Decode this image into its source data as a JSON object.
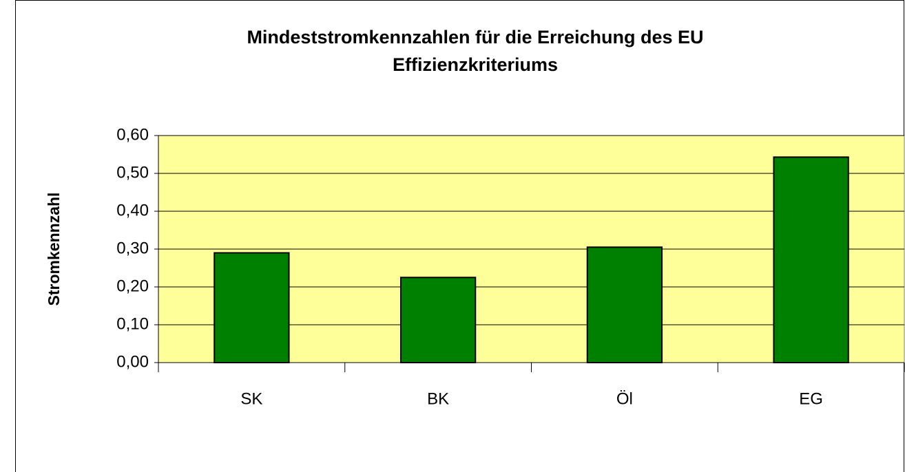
{
  "chart_data": {
    "type": "bar",
    "title": "Mindeststromkennzahlen für die Erreichung des EU Effizienzkriteriums",
    "y_label": "Stromkennzahl",
    "categories": [
      "SK",
      "BK",
      "Öl",
      "EG"
    ],
    "values": [
      0.29,
      0.225,
      0.305,
      0.543
    ],
    "color": "#008000",
    "plot_background": "#ffff99",
    "ylim": [
      0,
      0.6
    ],
    "yticks": [
      {
        "value": 0,
        "label": "0,00"
      },
      {
        "value": 0.1,
        "label": "0,10"
      },
      {
        "value": 0.2,
        "label": "0,20"
      },
      {
        "value": 0.3,
        "label": "0,30"
      },
      {
        "value": 0.4,
        "label": "0,40"
      },
      {
        "value": 0.5,
        "label": "0,50"
      },
      {
        "value": 0.6,
        "label": "0,60"
      }
    ],
    "grid": true
  }
}
